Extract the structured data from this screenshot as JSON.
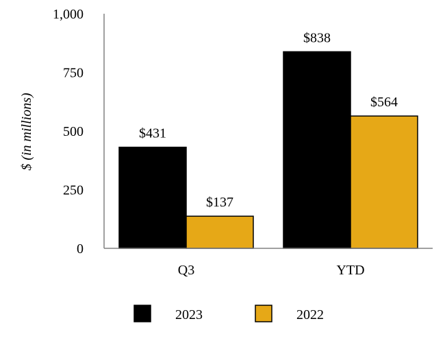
{
  "chart_data": {
    "type": "bar",
    "categories": [
      "Q3",
      "YTD"
    ],
    "series": [
      {
        "name": "2023",
        "values": [
          431,
          838
        ],
        "labels": [
          "$431",
          "$838"
        ],
        "color": "#000000"
      },
      {
        "name": "2022",
        "values": [
          137,
          564
        ],
        "labels": [
          "$137",
          "$564"
        ],
        "color": "#E6A817"
      }
    ],
    "ylabel": "$ (in millions)",
    "xlabel": "",
    "ylim": [
      0,
      1000
    ],
    "yticks": [
      0,
      250,
      500,
      750,
      1000
    ],
    "ytick_labels": [
      "0",
      "250",
      "500",
      "750",
      "1,000"
    ],
    "grid": false,
    "legend_position": "bottom"
  }
}
